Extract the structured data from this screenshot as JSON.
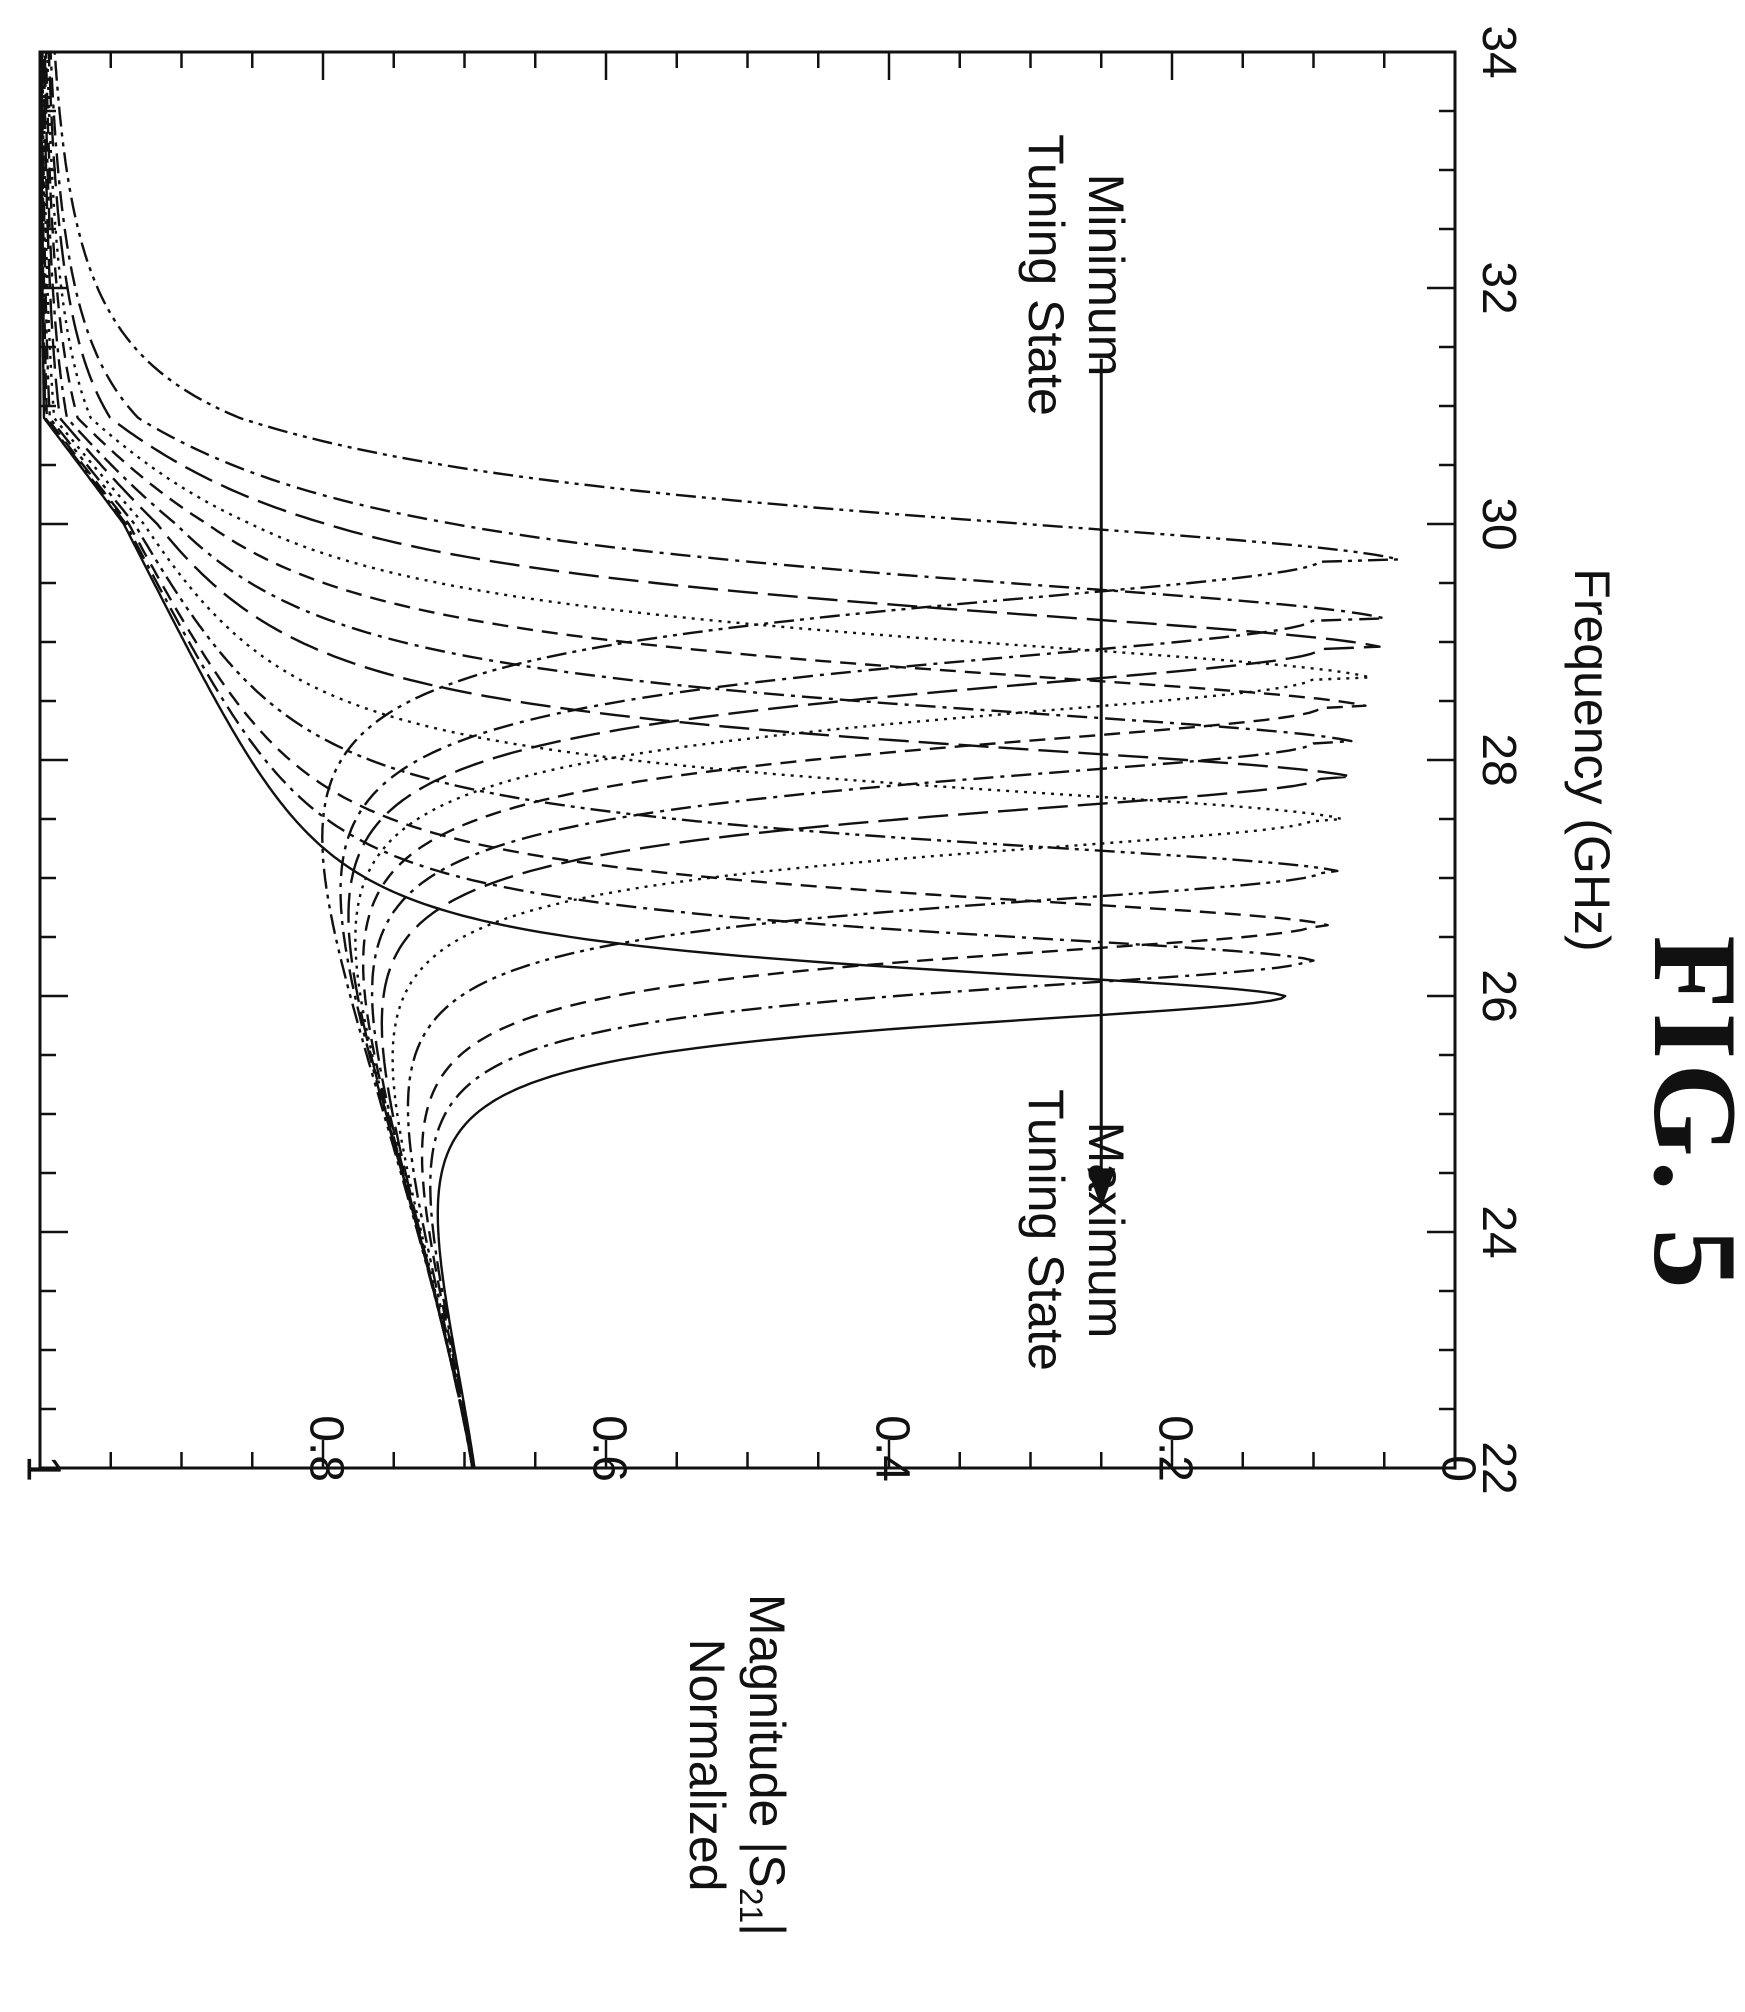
{
  "chart_data": {
    "type": "line",
    "figure_label": "FIG. 5",
    "xlabel": "Frequency (GHz)",
    "ylabel_line1": "Normalized",
    "ylabel_line2": "Magnitude |S",
    "ylabel_sub": "21",
    "ylabel_end": "|",
    "xlim": [
      22,
      34
    ],
    "ylim": [
      0,
      1
    ],
    "x_ticks": [
      "22",
      "24",
      "26",
      "28",
      "30",
      "32",
      "34"
    ],
    "y_ticks": [
      "0",
      "0.2",
      "0.4",
      "0.6",
      "0.8",
      "1"
    ],
    "grid": false,
    "rotation": "rotated 90 degrees clockwise on the page",
    "annotations": {
      "min_line1": "Tuning State",
      "min_line2": "Minimum",
      "max_line1": "Tuning State",
      "max_line2": "Maximum",
      "arrow": "from Tuning State Minimum toward Tuning State Maximum",
      "arrow_frequency_range": [
        31.4,
        24.2
      ],
      "arrow_magnitude": 0.25
    },
    "series": [
      {
        "f0": 26.0,
        "dip": 0.12,
        "line_style": "solid"
      },
      {
        "f0": 26.3,
        "dip": 0.1,
        "line_style": "dash-dot"
      },
      {
        "f0": 26.6,
        "dip": 0.09,
        "line_style": "dashed"
      },
      {
        "f0": 27.05,
        "dip": 0.08,
        "line_style": "dash-dot-dot"
      },
      {
        "f0": 27.5,
        "dip": 0.08,
        "line_style": "dotted"
      },
      {
        "f0": 27.85,
        "dip": 0.07,
        "line_style": "long-dash"
      },
      {
        "f0": 28.15,
        "dip": 0.07,
        "line_style": "dash-dot"
      },
      {
        "f0": 28.45,
        "dip": 0.06,
        "line_style": "dashed"
      },
      {
        "f0": 28.7,
        "dip": 0.06,
        "line_style": "dotted"
      },
      {
        "f0": 28.95,
        "dip": 0.05,
        "line_style": "long-dash"
      },
      {
        "f0": 29.2,
        "dip": 0.05,
        "line_style": "dash-dot"
      },
      {
        "f0": 29.7,
        "dip": 0.04,
        "line_style": "dash-dot-dot"
      }
    ]
  }
}
